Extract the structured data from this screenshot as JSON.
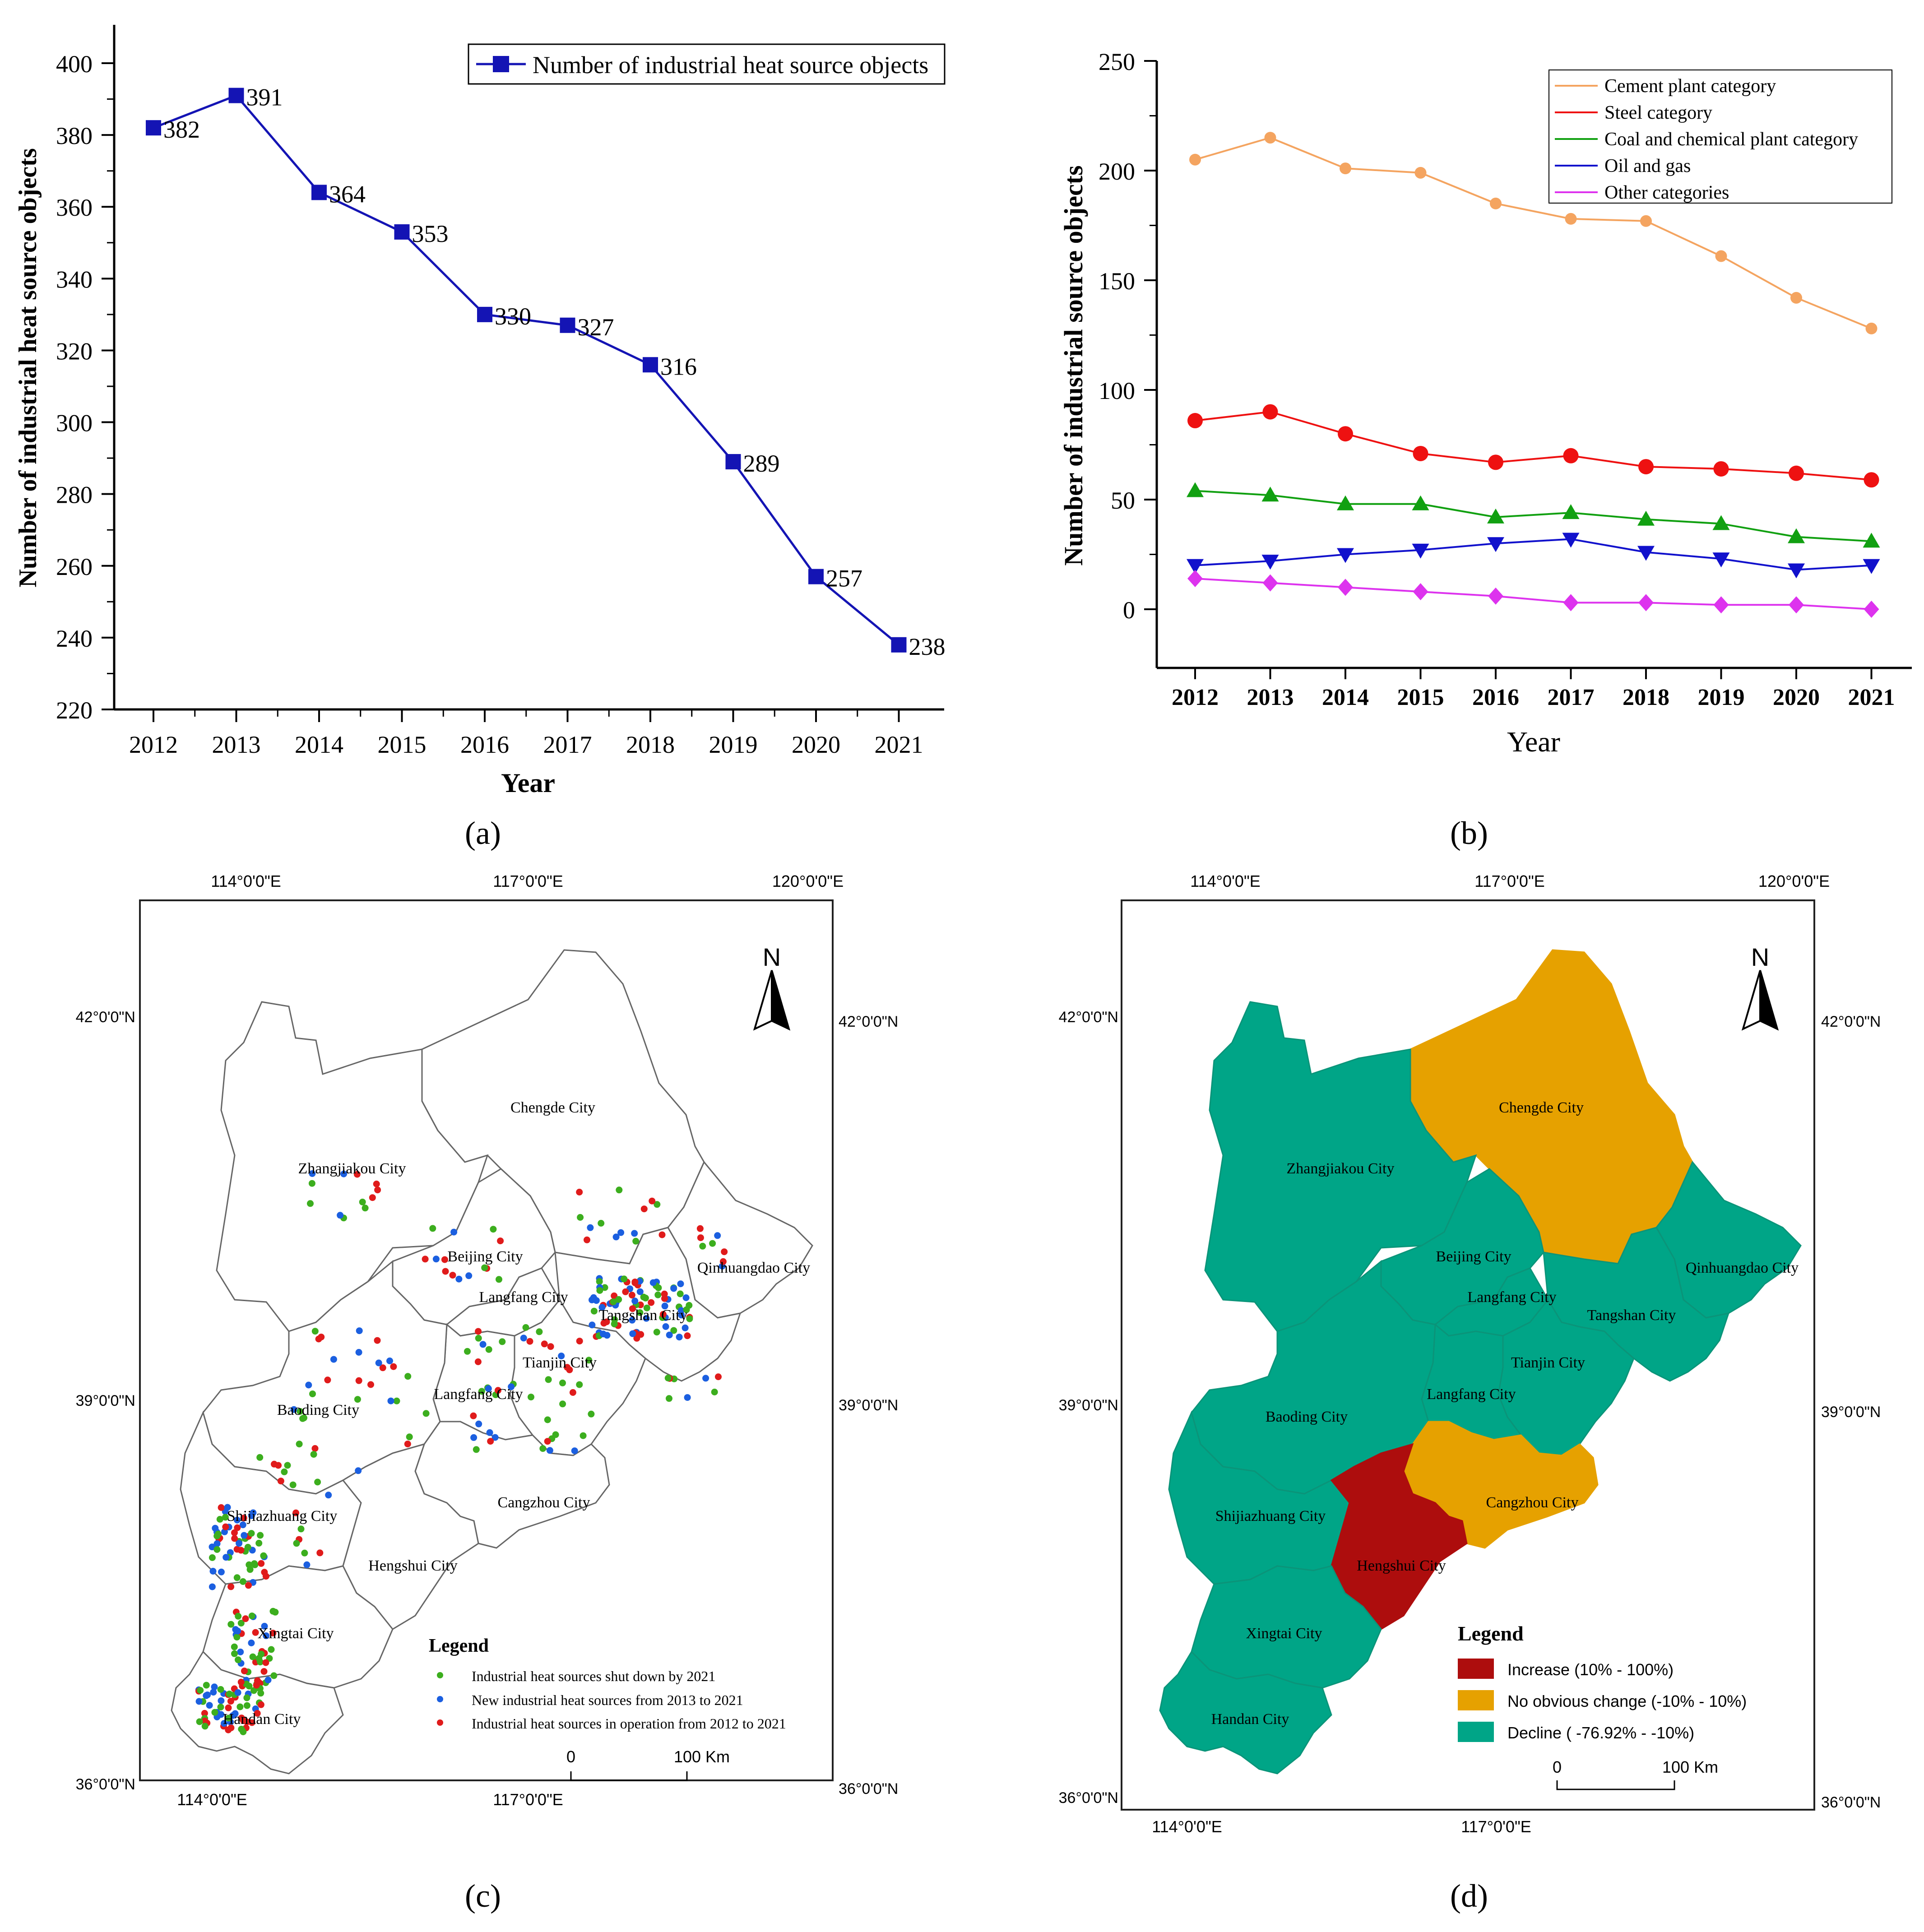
{
  "colors": {
    "navy": "#1414b4",
    "cement": "#f4a460",
    "steel": "#ee1111",
    "coal": "#11a011",
    "oil": "#1111cc",
    "other": "#dd33ee",
    "decline": "#00a587",
    "nochange": "#e6a100",
    "increase": "#ad0d0d",
    "dotShut": "#3cae1e",
    "dotNew": "#1b5fe0",
    "dotOper": "#e01b1b"
  },
  "panels": {
    "a": {
      "label": "(a)"
    },
    "b": {
      "label": "(b)"
    },
    "c": {
      "label": "(c)"
    },
    "d": {
      "label": "(d)"
    }
  },
  "chart_data": [
    {
      "id": "a",
      "type": "line",
      "title": "",
      "xlabel": "Year",
      "ylabel": "Number of industrial heat source objects",
      "x": [
        "2012",
        "2013",
        "2014",
        "2015",
        "2016",
        "2017",
        "2018",
        "2019",
        "2020",
        "2021"
      ],
      "ylim": [
        220,
        400
      ],
      "yticks": [
        "220",
        "240",
        "260",
        "280",
        "300",
        "320",
        "340",
        "360",
        "380",
        "400"
      ],
      "series": [
        {
          "name": "Number of industrial heat source objects",
          "values": [
            382,
            391,
            364,
            353,
            330,
            327,
            316,
            289,
            257,
            238
          ],
          "labels": [
            "382",
            "391",
            "364",
            "353",
            "330",
            "327",
            "316",
            "289",
            "257",
            "238"
          ]
        }
      ],
      "legend": "top-right"
    },
    {
      "id": "b",
      "type": "line",
      "title": "",
      "xlabel": "Year",
      "ylabel": "Number of industrial source objects",
      "x": [
        "2012",
        "2013",
        "2014",
        "2015",
        "2016",
        "2017",
        "2018",
        "2019",
        "2020",
        "2021"
      ],
      "ylim": [
        -25,
        250
      ],
      "yticks": [
        "0",
        "50",
        "100",
        "150",
        "200",
        "250"
      ],
      "series": [
        {
          "name": "Cement plant category",
          "values": [
            205,
            215,
            201,
            199,
            185,
            178,
            177,
            161,
            142,
            128
          ]
        },
        {
          "name": "Steel category",
          "values": [
            86,
            90,
            80,
            71,
            67,
            70,
            65,
            64,
            62,
            59
          ]
        },
        {
          "name": "Coal and chemical plant category",
          "values": [
            54,
            52,
            48,
            48,
            42,
            44,
            41,
            39,
            33,
            31
          ]
        },
        {
          "name": "Oil and gas",
          "values": [
            20,
            22,
            25,
            27,
            30,
            32,
            26,
            23,
            18,
            20
          ]
        },
        {
          "name": "Other categories",
          "values": [
            14,
            12,
            10,
            8,
            6,
            3,
            3,
            2,
            2,
            0
          ]
        }
      ],
      "legend": "top-right"
    }
  ],
  "maps": {
    "topLon": [
      "114°0'0\"E",
      "117°0'0\"E",
      "120°0'0\"E"
    ],
    "bottomLon": [
      "114°0'0\"E",
      "117°0'0\"E"
    ],
    "lat": [
      "42°0'0\"N",
      "39°0'0\"N",
      "36°0'0\"N"
    ],
    "north": "N",
    "scaleStart": "0",
    "scaleEnd": "100 Km",
    "cities": {
      "chengde": "Chengde City",
      "zhangjiakou": "Zhangjiakou City",
      "beijing": "Beijing City",
      "qinhuangdao": "Qinhuangdao City",
      "langfangN": "Langfang City",
      "tangshan": "Tangshan City",
      "tianjin": "Tianjin City",
      "baoding": "Baoding City",
      "langfangS": "Langfang City",
      "cangzhou": "Cangzhou City",
      "shijiazhuang": "Shijiazhuang City",
      "hengshui": "Hengshui City",
      "xingtai": "Xingtai City",
      "handan": "Handan City"
    },
    "legendC": {
      "title": "Legend",
      "items": [
        "Industrial heat sources shut down by 2021",
        "New industrial heat sources from 2013 to 2021",
        "Industrial heat sources in operation from 2012 to 2021"
      ]
    },
    "legendD": {
      "title": "Legend",
      "items": [
        "Increase (10% - 100%)",
        "No obvious change (-10% - 10%)",
        "Decline ( -76.92% - -10%)"
      ]
    }
  }
}
